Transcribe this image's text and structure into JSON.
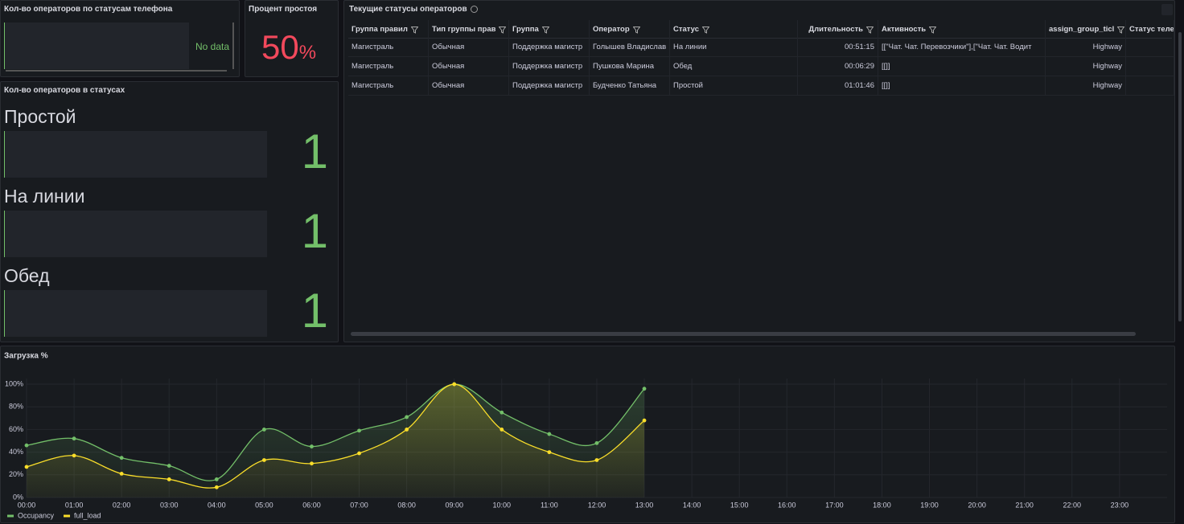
{
  "phone_status_panel": {
    "title": "Кол-во операторов по статусам телефона",
    "message": "No data"
  },
  "idle_panel": {
    "title": "Процент простоя",
    "value": 50,
    "unit": "%"
  },
  "status_count_panel": {
    "title": "Кол-во операторов в статусах",
    "items": [
      {
        "label": "Простой",
        "value": 1
      },
      {
        "label": "На линии",
        "value": 1
      },
      {
        "label": "Обед",
        "value": 1
      }
    ]
  },
  "table": {
    "title": "Текущие статусы операторов",
    "columns": [
      "Группа правил",
      "Тип группы прав",
      "Группа",
      "Оператор",
      "Статус",
      "Длительность",
      "Активность",
      "assign_group_ticl",
      "Статус теле"
    ],
    "rows": [
      [
        "Магистраль",
        "Обычная",
        "Поддержка магистр",
        "Голышев Владислав",
        "На линии",
        "00:51:15",
        "[[\"Чат. Чат. Перевозчики\"],[\"Чат. Чат. Водит",
        "Highway",
        ""
      ],
      [
        "Магистраль",
        "Обычная",
        "Поддержка магистр",
        "Пушкова Марина",
        "Обед",
        "00:06:29",
        "[[]]",
        "Highway",
        ""
      ],
      [
        "Магистраль",
        "Обычная",
        "Поддержка магистр",
        "Будченко Татьяна",
        "Простой",
        "01:01:46",
        "[[]]",
        "Highway",
        ""
      ]
    ]
  },
  "chart_data": {
    "type": "line",
    "title": "Загрузка %",
    "categories": [
      "00:00",
      "01:00",
      "02:00",
      "03:00",
      "04:00",
      "05:00",
      "06:00",
      "07:00",
      "08:00",
      "09:00",
      "10:00",
      "11:00",
      "12:00",
      "13:00",
      "14:00",
      "15:00",
      "16:00",
      "17:00",
      "18:00",
      "19:00",
      "20:00",
      "21:00",
      "22:00",
      "23:00"
    ],
    "series": [
      {
        "name": "Occupancy",
        "color": "#73bf69",
        "values": [
          46,
          52,
          35,
          28,
          16,
          60,
          45,
          59,
          71,
          100,
          75,
          56,
          48,
          96,
          null,
          null,
          null,
          null,
          null,
          null,
          null,
          null,
          null,
          null
        ]
      },
      {
        "name": "full_load",
        "color": "#fade2a",
        "values": [
          27,
          37,
          21,
          16,
          9,
          33,
          30,
          39,
          60,
          100,
          60,
          40,
          33,
          68,
          null,
          null,
          null,
          null,
          null,
          null,
          null,
          null,
          null,
          null
        ]
      }
    ],
    "ylim": [
      0,
      105
    ],
    "yticks": [
      {
        "value": 0,
        "label": "0%"
      },
      {
        "value": 20,
        "label": "20%"
      },
      {
        "value": 40,
        "label": "40%"
      },
      {
        "value": 60,
        "label": "60%"
      },
      {
        "value": 80,
        "label": "80%"
      },
      {
        "value": 100,
        "label": "100%"
      }
    ],
    "grid": true,
    "legend": "bottom-left"
  }
}
